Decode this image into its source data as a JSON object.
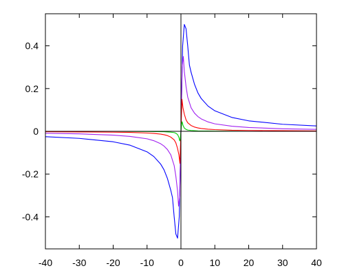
{
  "chart_data": {
    "type": "line",
    "title": "",
    "xlabel": "",
    "ylabel": "",
    "xlim": [
      -40,
      40
    ],
    "ylim": [
      -0.55,
      0.55
    ],
    "grid": false,
    "legend": "none",
    "x_ticks": [
      -40,
      -30,
      -20,
      -10,
      0,
      10,
      20,
      30,
      40
    ],
    "x_tick_labels": [
      "-40",
      "-30",
      "-20",
      "-10",
      "0",
      "10",
      "20",
      "30",
      "40"
    ],
    "y_ticks": [
      0.4,
      0.2,
      0,
      -0.2,
      -0.4
    ],
    "y_tick_labels": [
      "0.4",
      "0.2",
      "0",
      "-0.2",
      "-0.4"
    ],
    "series": [
      {
        "color": "#0000ff",
        "x": [
          -40,
          -30,
          -20,
          -15,
          -10,
          -8,
          -6,
          -5,
          -4,
          -3,
          -2.5,
          -2,
          -1.5,
          -1,
          -0.5,
          0,
          0.5,
          1,
          1.5,
          2,
          2.5,
          3,
          4,
          5,
          6,
          8,
          10,
          15,
          20,
          30,
          40
        ],
        "y": [
          -0.025,
          -0.033,
          -0.049,
          -0.065,
          -0.096,
          -0.118,
          -0.153,
          -0.18,
          -0.22,
          -0.276,
          -0.31,
          -0.4,
          -0.48,
          -0.5,
          -0.4,
          0,
          0.4,
          0.5,
          0.48,
          0.4,
          0.31,
          0.276,
          0.22,
          0.18,
          0.153,
          0.118,
          0.096,
          0.065,
          0.049,
          0.033,
          0.025
        ]
      },
      {
        "color": "#a020f0",
        "x": [
          -40,
          -30,
          -20,
          -15,
          -10,
          -8,
          -6,
          -5,
          -4,
          -3,
          -2,
          -1.5,
          -1,
          -0.7,
          -0.35,
          0,
          0.35,
          0.7,
          1,
          1.5,
          2,
          3,
          4,
          5,
          6,
          8,
          10,
          15,
          20,
          30,
          40
        ],
        "y": [
          -0.009,
          -0.012,
          -0.018,
          -0.024,
          -0.035,
          -0.044,
          -0.058,
          -0.069,
          -0.085,
          -0.11,
          -0.16,
          -0.21,
          -0.28,
          -0.35,
          -0.3,
          0,
          0.3,
          0.35,
          0.28,
          0.21,
          0.16,
          0.11,
          0.085,
          0.069,
          0.058,
          0.044,
          0.035,
          0.024,
          0.018,
          0.012,
          0.009
        ]
      },
      {
        "color": "#ff0000",
        "x": [
          -40,
          -30,
          -20,
          -15,
          -10,
          -8,
          -6,
          -5,
          -4,
          -3,
          -2,
          -1.5,
          -1,
          -0.6,
          -0.3,
          0,
          0.3,
          0.6,
          1,
          1.5,
          2,
          3,
          4,
          5,
          6,
          8,
          10,
          15,
          20,
          30,
          40
        ],
        "y": [
          -0.002,
          -0.003,
          -0.004,
          -0.005,
          -0.008,
          -0.01,
          -0.013,
          -0.016,
          -0.02,
          -0.027,
          -0.04,
          -0.054,
          -0.08,
          -0.11,
          -0.15,
          0,
          0.15,
          0.11,
          0.08,
          0.054,
          0.04,
          0.027,
          0.02,
          0.016,
          0.013,
          0.01,
          0.008,
          0.005,
          0.004,
          0.003,
          0.002
        ]
      },
      {
        "color": "#00cc00",
        "x": [
          -40,
          -20,
          -10,
          -5,
          -3,
          -2,
          -1.5,
          -1,
          -0.6,
          -0.35,
          -0.2,
          0,
          0.2,
          0.35,
          0.6,
          1,
          1.5,
          2,
          3,
          5,
          10,
          20,
          40
        ],
        "y": [
          0,
          0,
          -0.001,
          -0.002,
          -0.004,
          -0.006,
          -0.009,
          -0.015,
          -0.028,
          -0.045,
          -0.035,
          0,
          0.035,
          0.045,
          0.028,
          0.015,
          0.009,
          0.006,
          0.004,
          0.002,
          0.001,
          0,
          0
        ]
      },
      {
        "color": "#000000",
        "x": [
          -40,
          40
        ],
        "y": [
          0,
          0
        ]
      }
    ]
  }
}
